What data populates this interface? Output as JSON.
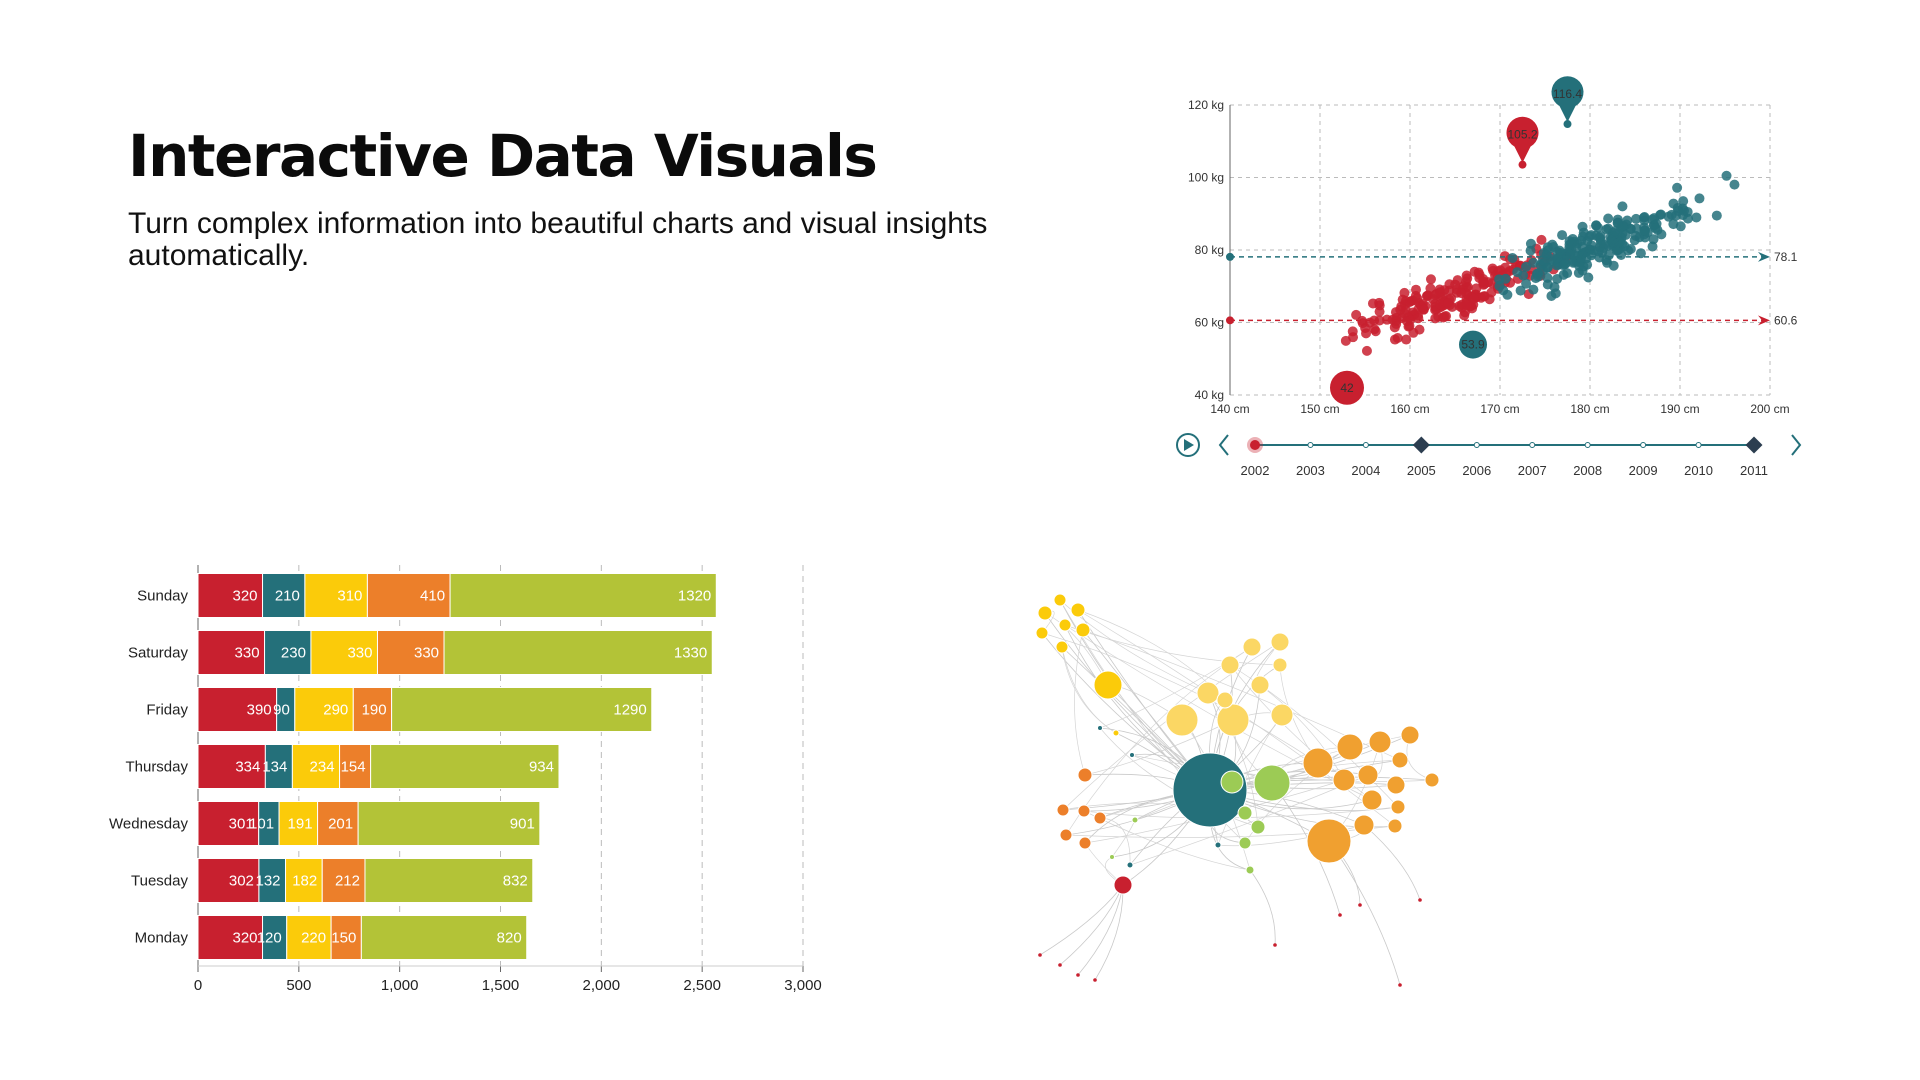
{
  "page": {
    "title": "Interactive Data Visuals",
    "subtitle": "Turn complex information into beautiful charts and visual insights automatically."
  },
  "colors": {
    "red": "#c8202f",
    "teal": "#24707a",
    "yellow": "#fbcb0a",
    "orange": "#ec7f2a",
    "green": "#b3c337",
    "dark": "#2c3e50"
  },
  "chart_data": [
    {
      "type": "scatter",
      "xlabel": "",
      "ylabel": "",
      "xlim": [
        140,
        200
      ],
      "ylim": [
        40,
        120
      ],
      "x_ticks": [
        "140 cm",
        "150 cm",
        "160 cm",
        "170 cm",
        "180 cm",
        "190 cm",
        "200 cm"
      ],
      "y_ticks": [
        "40 kg",
        "60 kg",
        "80 kg",
        "100 kg",
        "120 kg"
      ],
      "grid": true,
      "series": [
        {
          "color": "#c8202f",
          "mean_label": "60.6",
          "max_label": "105.2",
          "min_label": "42",
          "mean": 60.6,
          "max": [
            172.5,
            105.2
          ],
          "min": [
            153,
            42
          ],
          "cluster": {
            "x_range": [
              147,
              183
            ],
            "y_range": [
              43,
              92
            ],
            "count": 190
          }
        },
        {
          "color": "#24707a",
          "mean_label": "78.1",
          "max_label": "116.4",
          "min_label": "53.9",
          "mean": 78.1,
          "max": [
            177.5,
            116.4
          ],
          "min": [
            167,
            53.9
          ],
          "cluster": {
            "x_range": [
              163,
              199
            ],
            "y_range": [
              54,
              110
            ],
            "count": 210
          }
        }
      ],
      "timeline": {
        "years": [
          "2002",
          "2003",
          "2004",
          "2005",
          "2006",
          "2007",
          "2008",
          "2009",
          "2010",
          "2011"
        ],
        "current": "2002",
        "markers": [
          "2005",
          "2011"
        ]
      }
    },
    {
      "type": "bar",
      "stacked": true,
      "orientation": "horizontal",
      "categories": [
        "Sunday",
        "Saturday",
        "Friday",
        "Thursday",
        "Wednesday",
        "Tuesday",
        "Monday"
      ],
      "series": [
        {
          "color": "#c8202f",
          "values": [
            320,
            330,
            390,
            334,
            301,
            302,
            320
          ]
        },
        {
          "color": "#24707a",
          "values": [
            210,
            230,
            90,
            134,
            101,
            132,
            120
          ]
        },
        {
          "color": "#fbcb0a",
          "values": [
            310,
            330,
            290,
            234,
            191,
            182,
            220
          ]
        },
        {
          "color": "#ec7f2a",
          "values": [
            410,
            330,
            190,
            154,
            201,
            212,
            150
          ]
        },
        {
          "color": "#b3c337",
          "values": [
            1320,
            1330,
            1290,
            934,
            901,
            832,
            820
          ]
        }
      ],
      "xlim": [
        0,
        3000
      ],
      "x_ticks": [
        "0",
        "500",
        "1,000",
        "1,500",
        "2,000",
        "2,500",
        "3,000"
      ]
    }
  ],
  "network": {
    "hub_color": "#24707a",
    "groups": [
      {
        "color": "#fbcb0a",
        "name": "yellow"
      },
      {
        "color": "#fbd764",
        "name": "light-yellow"
      },
      {
        "color": "#9ccb55",
        "name": "green"
      },
      {
        "color": "#f0a030",
        "name": "amber"
      },
      {
        "color": "#ec7f2a",
        "name": "orange"
      },
      {
        "color": "#c8202f",
        "name": "red"
      }
    ]
  }
}
